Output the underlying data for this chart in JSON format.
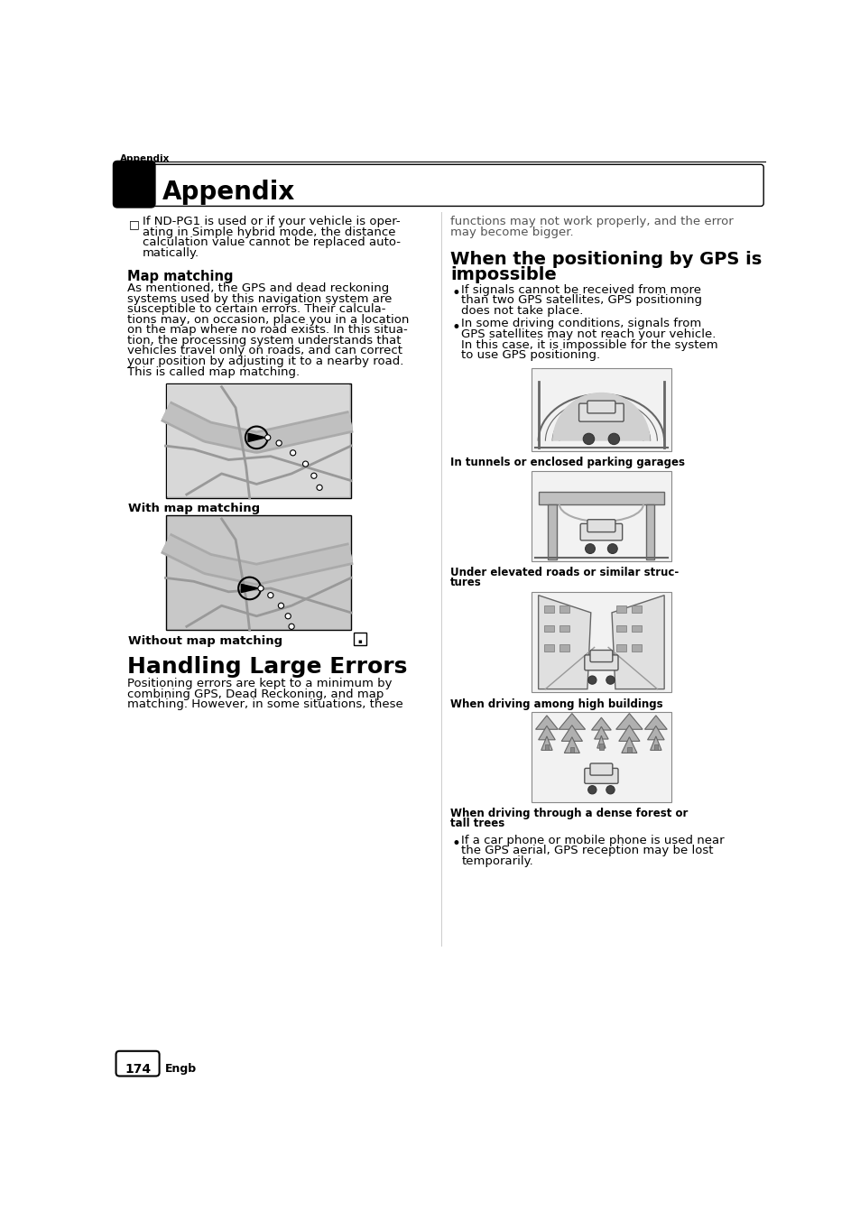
{
  "page_bg": "#ffffff",
  "header_tab_text": "Appendix",
  "header_small_text": "Appendix",
  "page_number": "174",
  "page_number_label": "Engb",
  "note_lines": [
    "If ND-PG1 is used or if your vehicle is oper-",
    "ating in Simple hybrid mode, the distance",
    "calculation value cannot be replaced auto-",
    "matically."
  ],
  "map_matching_title": "Map matching",
  "map_matching_body": [
    "As mentioned, the GPS and dead reckoning",
    "systems used by this navigation system are",
    "susceptible to certain errors. Their calcula-",
    "tions may, on occasion, place you in a location",
    "on the map where no road exists. In this situa-",
    "tion, the processing system understands that",
    "vehicles travel only on roads, and can correct",
    "your position by adjusting it to a nearby road.",
    "This is called map matching."
  ],
  "with_map_matching": "With map matching",
  "without_map_matching": "Without map matching",
  "handling_title": "Handling Large Errors",
  "handling_body": [
    "Positioning errors are kept to a minimum by",
    "combining GPS, Dead Reckoning, and map",
    "matching. However, in some situations, these"
  ],
  "right_top_body": [
    "functions may not work properly, and the error",
    "may become bigger."
  ],
  "gps_impossible_title_line1": "When the positioning by GPS is",
  "gps_impossible_title_line2": "impossible",
  "bullet1_lines": [
    "If signals cannot be received from more",
    "than two GPS satellites, GPS positioning",
    "does not take place."
  ],
  "bullet2_lines": [
    "In some driving conditions, signals from",
    "GPS satellites may not reach your vehicle.",
    "In this case, it is impossible for the system",
    "to use GPS positioning."
  ],
  "caption1": "In tunnels or enclosed parking garages",
  "caption2_lines": [
    "Under elevated roads or similar struc-",
    "tures"
  ],
  "caption3": "When driving among high buildings",
  "caption4_lines": [
    "When driving through a dense forest or",
    "tall trees"
  ],
  "bullet3_lines": [
    "If a car phone or mobile phone is used near",
    "the GPS aerial, GPS reception may be lost",
    "temporarily."
  ],
  "font_body": 9.5,
  "font_title_sm": 10.5,
  "font_heading": 18,
  "font_section": 14
}
